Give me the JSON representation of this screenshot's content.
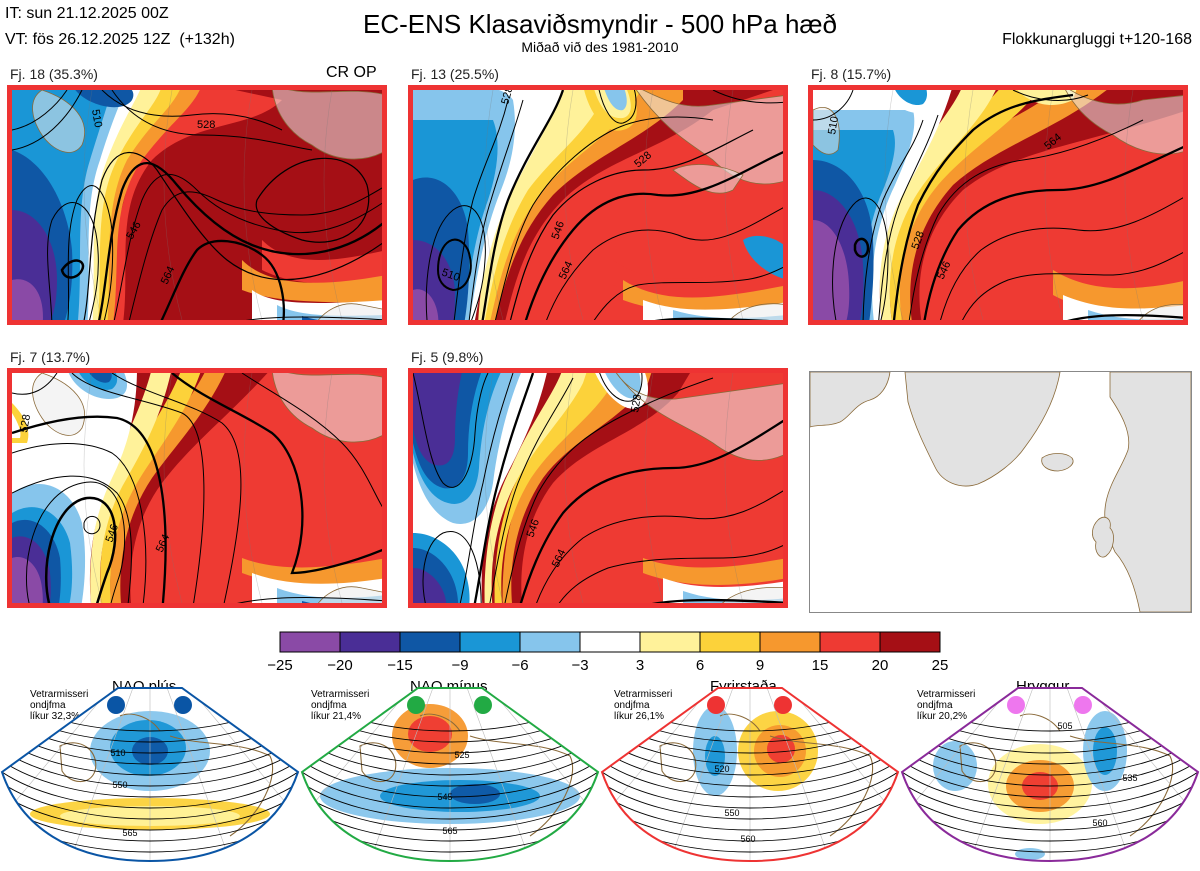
{
  "header": {
    "it": "IT: sun 21.12.2025 00Z",
    "vt": "VT: fös 26.12.2025 12Z  (+132h)",
    "title": "EC-ENS Klasaviðsmyndir - 500 hPa hæð",
    "subtitle": "Miðað við des 1981-2010",
    "window": "Flokkunargluggi t+120-168"
  },
  "panels": [
    {
      "label": "Fj. 18 (35.3%)",
      "op_label": "CR OP"
    },
    {
      "label": "Fj. 13 (25.5%)"
    },
    {
      "label": "Fj. 8 (15.7%)"
    },
    {
      "label": "Fj. 7 (13.7%)"
    },
    {
      "label": "Fj. 5 (9.8%)"
    }
  ],
  "colors": {
    "frame": "#ee3333",
    "land": "#e2e2e2",
    "coast": "#8a6a3a",
    "contour": "#000000",
    "nao_plus": "#0a55a5",
    "nao_minus": "#22aa44",
    "fyrirstada": "#ee3333",
    "hryggur": "#8a2a9a",
    "hryggur_dot": "#ee77ee"
  },
  "regimes": [
    {
      "name": "NAO plús",
      "note": [
        "Vetrarmisseri",
        "ondjfma",
        "líkur 32,3%"
      ],
      "contour_labels": [
        "510",
        "550",
        "565"
      ]
    },
    {
      "name": "NAO mínus",
      "note": [
        "Vetrarmisseri",
        "ondjfma",
        "líkur 21,4%"
      ],
      "contour_labels": [
        "525",
        "545",
        "565"
      ]
    },
    {
      "name": "Fyrirstaða",
      "note": [
        "Vetrarmisseri",
        "ondjfma",
        "líkur 26,1%"
      ],
      "contour_labels": [
        "520",
        "550",
        "560"
      ]
    },
    {
      "name": "Hryggur",
      "note": [
        "Vetrarmisseri",
        "ondjfma",
        "líkur 20,2%"
      ],
      "contour_labels": [
        "505",
        "535",
        "560"
      ]
    }
  ],
  "chart_data": {
    "type": "heatmap",
    "title": "EC-ENS Klasaviðsmyndir - 500 hPa hæð",
    "variable": "500 hPa geopotential height anomaly",
    "colorbar": {
      "ticks": [
        "−25",
        "−20",
        "−15",
        "−9",
        "−6",
        "−3",
        "3",
        "6",
        "9",
        "15",
        "20",
        "25"
      ],
      "bins": [
        {
          "from": -25,
          "to": -20,
          "color": "#8a4aa6"
        },
        {
          "from": -20,
          "to": -15,
          "color": "#4a2e96"
        },
        {
          "from": -15,
          "to": -9,
          "color": "#0f57a5"
        },
        {
          "from": -9,
          "to": -6,
          "color": "#1a96d6"
        },
        {
          "from": -6,
          "to": -3,
          "color": "#86c5ec"
        },
        {
          "from": -3,
          "to": 3,
          "color": "#ffffff"
        },
        {
          "from": 3,
          "to": 6,
          "color": "#fff29a"
        },
        {
          "from": 6,
          "to": 9,
          "color": "#fcd23a"
        },
        {
          "from": 9,
          "to": 15,
          "color": "#f6982e"
        },
        {
          "from": 15,
          "to": 20,
          "color": "#ee3a33"
        },
        {
          "from": 20,
          "to": 25,
          "color": "#a50f15"
        }
      ]
    },
    "clusters": [
      {
        "id": 18,
        "percent": 35.3,
        "contour_labels": [
          "510",
          "528",
          "546",
          "564",
          "528",
          "546"
        ]
      },
      {
        "id": 13,
        "percent": 25.5,
        "contour_labels": [
          "510",
          "528",
          "546",
          "564",
          "528",
          "546"
        ]
      },
      {
        "id": 8,
        "percent": 15.7,
        "contour_labels": [
          "510",
          "528",
          "546",
          "564",
          "546"
        ]
      },
      {
        "id": 7,
        "percent": 13.7,
        "contour_labels": [
          "528",
          "546",
          "564",
          "528",
          "546"
        ]
      },
      {
        "id": 5,
        "percent": 9.8,
        "contour_labels": [
          "528",
          "546",
          "564",
          "528",
          "546"
        ]
      }
    ]
  }
}
